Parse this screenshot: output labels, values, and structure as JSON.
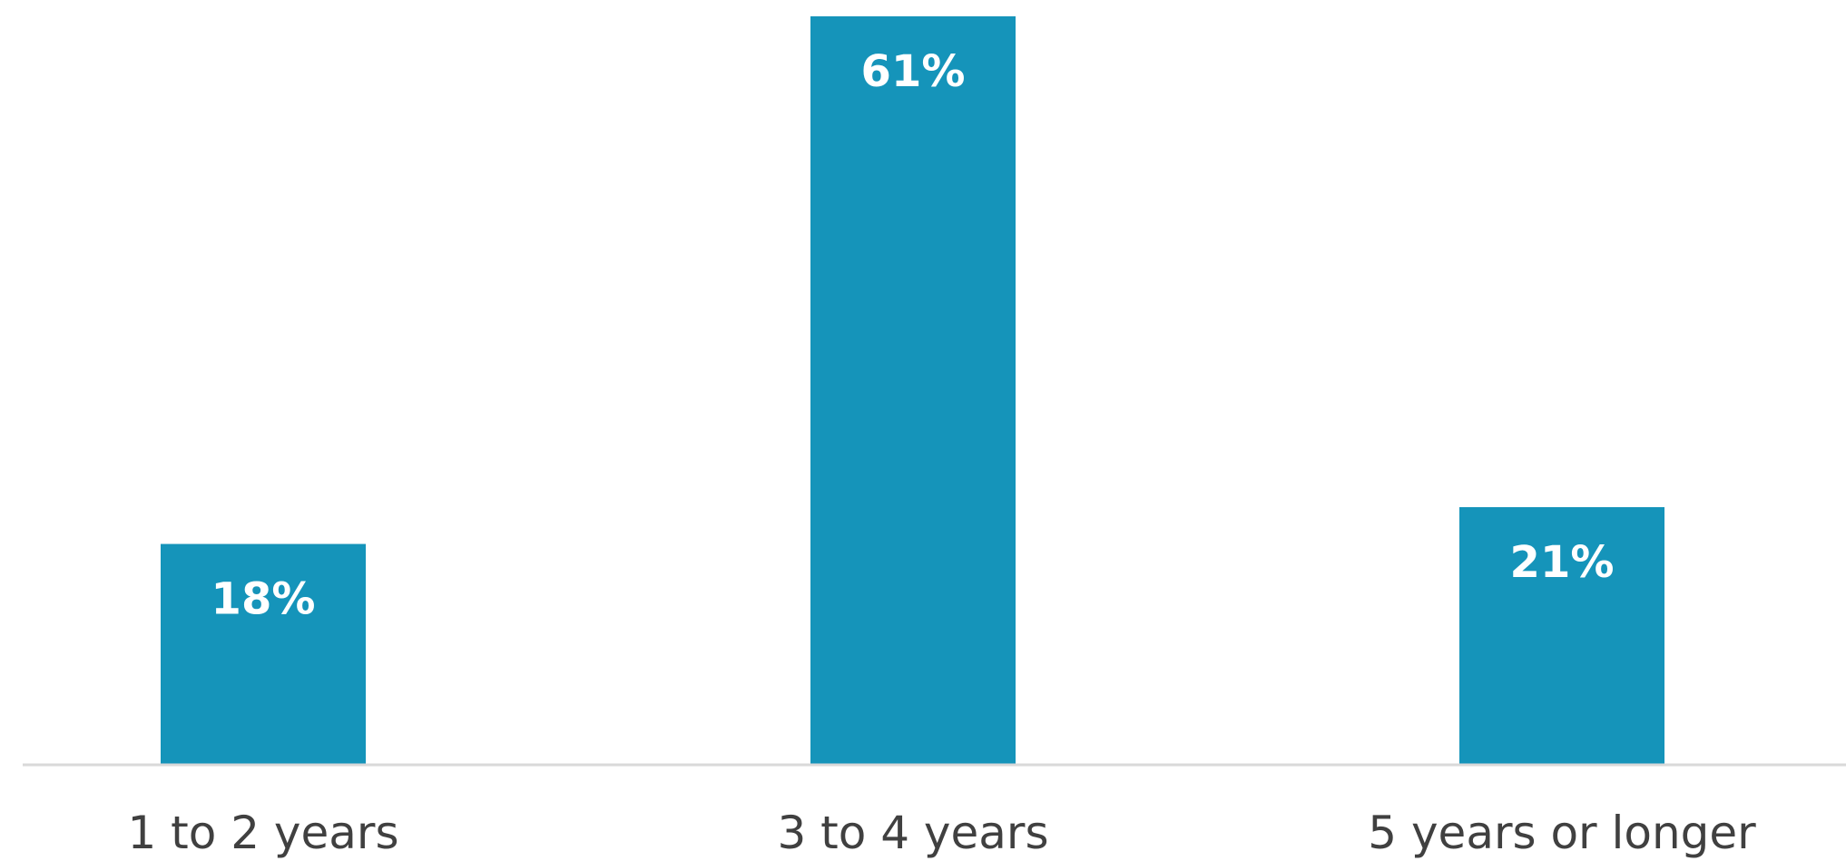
{
  "chart_data": {
    "type": "bar",
    "categories": [
      "1 to 2 years",
      "3 to 4 years",
      "5 years or longer"
    ],
    "values": [
      18,
      61,
      21
    ],
    "value_labels": [
      "18%",
      "61%",
      "21%"
    ],
    "title": "",
    "xlabel": "",
    "ylabel": "",
    "ylim": [
      0,
      61
    ],
    "grid": false,
    "legend": "none",
    "colors": {
      "bar": "#1594BA",
      "bar_label": "#FFFFFF",
      "axis_line": "#D9D9D9",
      "category_text": "#404040",
      "background": "#FFFFFF"
    }
  }
}
